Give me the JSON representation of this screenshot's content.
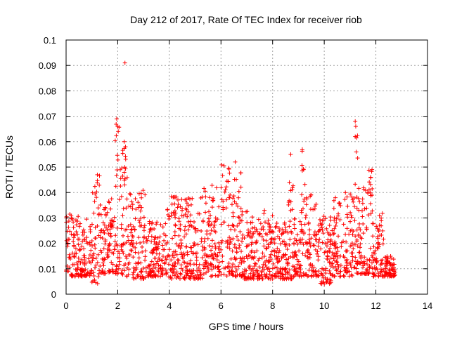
{
  "chart_data": {
    "type": "scatter",
    "title": "Day 212 of 2017, Rate Of TEC Index for receiver riob",
    "xlabel": "GPS time / hours",
    "ylabel": "ROTI / TECUs",
    "xlim": [
      0,
      14
    ],
    "ylim": [
      0,
      0.1
    ],
    "xticks": [
      0,
      2,
      4,
      6,
      8,
      10,
      12,
      14
    ],
    "yticks": [
      0,
      0.01,
      0.02,
      0.03,
      0.04,
      0.05,
      0.06,
      0.07,
      0.08,
      0.09,
      0.1
    ],
    "xtick_labels": [
      "0",
      "2",
      "4",
      "6",
      "8",
      "10",
      "12",
      "14"
    ],
    "ytick_labels": [
      "0",
      "0.01",
      "0.02",
      "0.03",
      "0.04",
      "0.05",
      "0.06",
      "0.07",
      "0.08",
      "0.09",
      "0.1"
    ],
    "grid": true,
    "marker": "+",
    "color": "#ff0000",
    "series": [
      {
        "name": "ROTI",
        "x_range": [
          0.0,
          12.75
        ],
        "bands": [
          {
            "x0": 0.0,
            "x1": 0.15,
            "lo": 0.009,
            "hi": 0.037
          },
          {
            "x0": 0.15,
            "x1": 1.0,
            "lo": 0.007,
            "hi": 0.031
          },
          {
            "x0": 1.0,
            "x1": 1.3,
            "lo": 0.004,
            "hi": 0.05
          },
          {
            "x0": 1.3,
            "x1": 1.9,
            "lo": 0.008,
            "hi": 0.038
          },
          {
            "x0": 1.9,
            "x1": 2.1,
            "lo": 0.008,
            "hi": 0.069
          },
          {
            "x0": 2.1,
            "x1": 2.5,
            "lo": 0.007,
            "hi": 0.06
          },
          {
            "x0": 2.5,
            "x1": 3.1,
            "lo": 0.006,
            "hi": 0.041
          },
          {
            "x0": 3.1,
            "x1": 3.9,
            "lo": 0.007,
            "hi": 0.03
          },
          {
            "x0": 3.9,
            "x1": 5.3,
            "lo": 0.006,
            "hi": 0.039
          },
          {
            "x0": 5.3,
            "x1": 6.0,
            "lo": 0.007,
            "hi": 0.043
          },
          {
            "x0": 6.0,
            "x1": 6.9,
            "lo": 0.007,
            "hi": 0.052
          },
          {
            "x0": 6.9,
            "x1": 8.0,
            "lo": 0.006,
            "hi": 0.033
          },
          {
            "x0": 8.0,
            "x1": 8.6,
            "lo": 0.006,
            "hi": 0.029
          },
          {
            "x0": 8.6,
            "x1": 8.8,
            "lo": 0.006,
            "hi": 0.055
          },
          {
            "x0": 8.8,
            "x1": 9.1,
            "lo": 0.007,
            "hi": 0.03
          },
          {
            "x0": 9.1,
            "x1": 9.3,
            "lo": 0.007,
            "hi": 0.057
          },
          {
            "x0": 9.3,
            "x1": 9.8,
            "lo": 0.007,
            "hi": 0.043
          },
          {
            "x0": 9.8,
            "x1": 10.3,
            "lo": 0.004,
            "hi": 0.032
          },
          {
            "x0": 10.3,
            "x1": 11.1,
            "lo": 0.007,
            "hi": 0.04
          },
          {
            "x0": 11.1,
            "x1": 11.3,
            "lo": 0.008,
            "hi": 0.068
          },
          {
            "x0": 11.3,
            "x1": 11.7,
            "lo": 0.008,
            "hi": 0.042
          },
          {
            "x0": 11.7,
            "x1": 11.9,
            "lo": 0.008,
            "hi": 0.049
          },
          {
            "x0": 11.9,
            "x1": 12.3,
            "lo": 0.007,
            "hi": 0.033
          },
          {
            "x0": 12.3,
            "x1": 12.75,
            "lo": 0.007,
            "hi": 0.015
          }
        ],
        "outliers": [
          {
            "x": 2.28,
            "y": 0.091
          },
          {
            "x": 1.96,
            "y": 0.069
          },
          {
            "x": 2.0,
            "y": 0.066
          },
          {
            "x": 2.02,
            "y": 0.064
          },
          {
            "x": 2.25,
            "y": 0.06
          },
          {
            "x": 2.3,
            "y": 0.058
          },
          {
            "x": 6.55,
            "y": 0.052
          },
          {
            "x": 8.7,
            "y": 0.055
          },
          {
            "x": 8.65,
            "y": 0.044
          },
          {
            "x": 9.15,
            "y": 0.057
          },
          {
            "x": 9.2,
            "y": 0.049
          },
          {
            "x": 11.2,
            "y": 0.068
          },
          {
            "x": 11.22,
            "y": 0.066
          },
          {
            "x": 11.2,
            "y": 0.062
          },
          {
            "x": 11.24,
            "y": 0.056
          },
          {
            "x": 11.85,
            "y": 0.049
          },
          {
            "x": 11.8,
            "y": 0.046
          },
          {
            "x": 11.78,
            "y": 0.04
          }
        ]
      }
    ]
  }
}
